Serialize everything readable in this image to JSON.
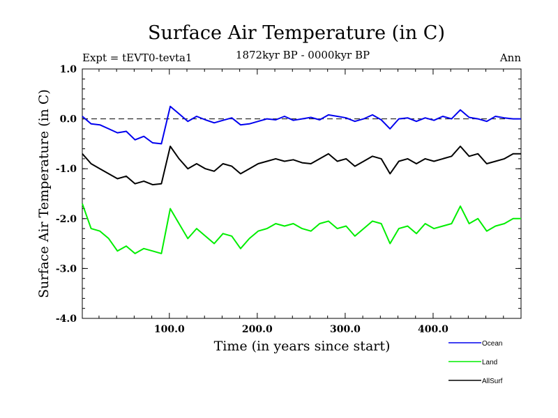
{
  "chart_data": {
    "type": "line",
    "title": "Surface Air Temperature (in C)",
    "subtitle": "1872kyr BP - 0000kyr BP",
    "left_label": "Expt = tEVT0-tevta1",
    "right_label": "Ann",
    "xlabel": "Time (in years since start)",
    "ylabel": "Surface Air Temperature (in C)",
    "xlim": [
      1,
      500
    ],
    "ylim": [
      -4.0,
      1.0
    ],
    "xticks": [
      100,
      200,
      300,
      400
    ],
    "xtick_labels": [
      "100.0",
      "200.0",
      "300.0",
      "400.0"
    ],
    "yticks": [
      1.0,
      0.0,
      -1.0,
      -2.0,
      -3.0,
      -4.0
    ],
    "ytick_labels": [
      "1.0",
      "0.0",
      "-1.0",
      "-2.0",
      "-3.0",
      "-4.0"
    ],
    "reference_line": 0.0,
    "legend_position": "bottom-right",
    "x_step": 10,
    "series": [
      {
        "name": "Ocean",
        "color": "#0000ee",
        "values": [
          0.05,
          -0.1,
          -0.12,
          -0.2,
          -0.28,
          -0.25,
          -0.42,
          -0.35,
          -0.48,
          -0.5,
          0.25,
          0.1,
          -0.05,
          0.05,
          -0.02,
          -0.08,
          -0.03,
          0.02,
          -0.12,
          -0.1,
          -0.05,
          0.0,
          -0.02,
          0.05,
          -0.03,
          0.0,
          0.03,
          -0.02,
          0.08,
          0.05,
          0.02,
          -0.05,
          0.0,
          0.08,
          -0.02,
          -0.2,
          0.0,
          0.02,
          -0.05,
          0.02,
          -0.03,
          0.05,
          0.0,
          0.18,
          0.03,
          0.0,
          -0.05,
          0.05,
          0.02,
          0.0
        ]
      },
      {
        "name": "Land",
        "color": "#00ee00",
        "values": [
          -1.7,
          -2.2,
          -2.25,
          -2.4,
          -2.65,
          -2.55,
          -2.7,
          -2.6,
          -2.65,
          -2.7,
          -1.8,
          -2.1,
          -2.4,
          -2.2,
          -2.35,
          -2.5,
          -2.3,
          -2.35,
          -2.6,
          -2.4,
          -2.25,
          -2.2,
          -2.1,
          -2.15,
          -2.1,
          -2.2,
          -2.25,
          -2.1,
          -2.05,
          -2.2,
          -2.15,
          -2.35,
          -2.2,
          -2.05,
          -2.1,
          -2.5,
          -2.2,
          -2.15,
          -2.3,
          -2.1,
          -2.2,
          -2.15,
          -2.1,
          -1.75,
          -2.1,
          -2.0,
          -2.25,
          -2.15,
          -2.1,
          -2.0
        ]
      },
      {
        "name": "AllSurf",
        "color": "#000000",
        "values": [
          -0.7,
          -0.9,
          -1.0,
          -1.1,
          -1.2,
          -1.15,
          -1.3,
          -1.25,
          -1.32,
          -1.3,
          -0.55,
          -0.8,
          -1.0,
          -0.9,
          -1.0,
          -1.05,
          -0.9,
          -0.95,
          -1.1,
          -1.0,
          -0.9,
          -0.85,
          -0.8,
          -0.85,
          -0.82,
          -0.88,
          -0.9,
          -0.8,
          -0.7,
          -0.85,
          -0.8,
          -0.95,
          -0.85,
          -0.75,
          -0.8,
          -1.1,
          -0.85,
          -0.8,
          -0.9,
          -0.8,
          -0.85,
          -0.8,
          -0.75,
          -0.55,
          -0.75,
          -0.7,
          -0.9,
          -0.85,
          -0.8,
          -0.7
        ]
      }
    ]
  }
}
